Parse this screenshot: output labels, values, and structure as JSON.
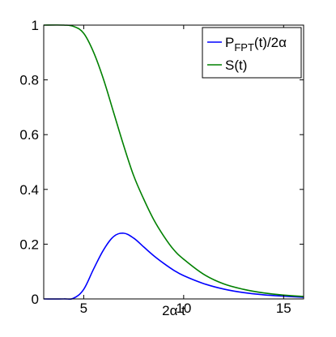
{
  "chart_data": {
    "type": "line",
    "title": "",
    "xlabel": "2α t",
    "ylabel": "",
    "xlim": [
      3,
      16
    ],
    "ylim": [
      0,
      1
    ],
    "xticks": [
      5,
      10,
      15
    ],
    "yticks": [
      0,
      0.2,
      0.4,
      0.6,
      0.8,
      1
    ],
    "ytick_labels": [
      "0",
      "0.2",
      "0.4",
      "0.6",
      "0.8",
      "1"
    ],
    "grid": false,
    "legend_position": "top-right",
    "series": [
      {
        "name": "P_FPT(t)/2α",
        "legend": {
          "base": "P",
          "sub": "FPT",
          "rest": "(t)/2α"
        },
        "color": "#0000ff",
        "x": [
          3,
          4,
          4.5,
          5,
          5.5,
          6,
          6.5,
          7,
          7.5,
          8,
          8.5,
          9,
          9.5,
          10,
          11,
          12,
          13,
          14,
          15,
          16
        ],
        "y": [
          0,
          0,
          0.003,
          0.035,
          0.11,
          0.18,
          0.228,
          0.24,
          0.222,
          0.19,
          0.158,
          0.13,
          0.105,
          0.085,
          0.056,
          0.036,
          0.023,
          0.015,
          0.01,
          0.006
        ]
      },
      {
        "name": "S(t)",
        "legend": {
          "base": "S(t)",
          "sub": "",
          "rest": ""
        },
        "color": "#008000",
        "x": [
          3,
          4,
          4.5,
          5,
          5.5,
          6,
          6.5,
          7,
          7.5,
          8,
          8.5,
          9,
          9.5,
          10,
          11,
          12,
          13,
          14,
          15,
          16
        ],
        "y": [
          1,
          1,
          0.995,
          0.97,
          0.9,
          0.8,
          0.68,
          0.56,
          0.45,
          0.365,
          0.29,
          0.23,
          0.18,
          0.145,
          0.09,
          0.055,
          0.035,
          0.022,
          0.014,
          0.009
        ]
      }
    ]
  }
}
